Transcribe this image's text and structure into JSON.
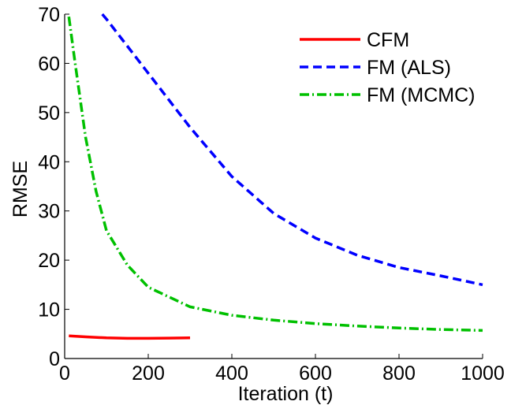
{
  "chart_data": {
    "type": "line",
    "title": "",
    "xlabel": "Iteration (t)",
    "ylabel": "RMSE",
    "xlim": [
      0,
      1000
    ],
    "ylim": [
      0,
      70
    ],
    "xticks": [
      0,
      200,
      400,
      600,
      800,
      1000
    ],
    "yticks": [
      0,
      10,
      20,
      30,
      40,
      50,
      60,
      70
    ],
    "grid": false,
    "legend_position": "top-right",
    "series": [
      {
        "name": "CFM",
        "color": "#ff0000",
        "style": "solid",
        "x": [
          10,
          50,
          100,
          150,
          200,
          250,
          300
        ],
        "y": [
          4.6,
          4.4,
          4.2,
          4.1,
          4.1,
          4.15,
          4.2
        ]
      },
      {
        "name": "FM (ALS)",
        "color": "#0000ff",
        "style": "dashed",
        "x": [
          90,
          100,
          200,
          300,
          400,
          500,
          600,
          700,
          800,
          900,
          1000
        ],
        "y": [
          70,
          69,
          58,
          47,
          37,
          29.5,
          24.5,
          21,
          18.5,
          16.8,
          15
        ]
      },
      {
        "name": "FM (MCMC)",
        "color": "#00c000",
        "style": "dashdot",
        "x": [
          10,
          25,
          50,
          75,
          100,
          150,
          200,
          300,
          400,
          500,
          600,
          700,
          800,
          900,
          1000
        ],
        "y": [
          69.5,
          60,
          45,
          34,
          26,
          19,
          14.5,
          10.5,
          8.8,
          7.8,
          7.1,
          6.6,
          6.2,
          5.9,
          5.7
        ]
      }
    ]
  }
}
